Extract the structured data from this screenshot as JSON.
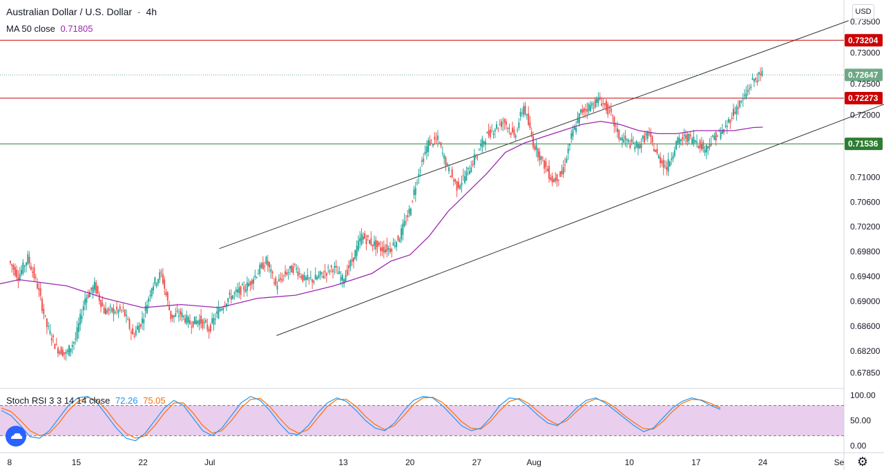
{
  "header": {
    "symbol_title": "Australian Dollar / U.S. Dollar",
    "separator": "·",
    "interval": "4h",
    "ma_label": "MA 50 close",
    "ma_value": "0.71805",
    "currency": "USD"
  },
  "indicator": {
    "label": "Stoch RSI 3 3 14 14 close",
    "k_value": "72.26",
    "d_value": "75.05"
  },
  "colors": {
    "up": "#26a69a",
    "down": "#ef5350",
    "ma": "#9c27b0",
    "red_line": "#cc0000",
    "green_line": "#2e7d32",
    "price_label": "#6fa888",
    "stoch_k": "#2196f3",
    "stoch_d": "#ff6d00",
    "stoch_band": "#e1bee7"
  },
  "chart_data": {
    "type": "candlestick",
    "price_axis": {
      "ticks": [
        "0.73500",
        "0.73000",
        "0.72500",
        "0.72000",
        "0.71000",
        "0.70600",
        "0.70200",
        "0.69800",
        "0.69400",
        "0.69000",
        "0.68600",
        "0.68200",
        "0.67850"
      ],
      "values": [
        0.735,
        0.73,
        0.725,
        0.72,
        0.71,
        0.706,
        0.702,
        0.698,
        0.694,
        0.69,
        0.686,
        0.682,
        0.6785
      ]
    },
    "horizontal_levels": [
      {
        "price": 0.73204,
        "label": "0.73204",
        "kind": "resistance-red"
      },
      {
        "price": 0.72647,
        "label": "0.72647",
        "kind": "last-price"
      },
      {
        "price": 0.72273,
        "label": "0.72273",
        "kind": "resistance-red"
      },
      {
        "price": 0.71536,
        "label": "0.71536",
        "kind": "support-green"
      }
    ],
    "time_axis": [
      {
        "label": "8",
        "day": 8
      },
      {
        "label": "15",
        "day": 15
      },
      {
        "label": "22",
        "day": 22
      },
      {
        "label": "Jul",
        "day": 29
      },
      {
        "label": "13",
        "day": 43
      },
      {
        "label": "20",
        "day": 50
      },
      {
        "label": "27",
        "day": 57
      },
      {
        "label": "Aug",
        "day": 63
      },
      {
        "label": "10",
        "day": 73
      },
      {
        "label": "17",
        "day": 80
      },
      {
        "label": "24",
        "day": 87
      },
      {
        "label": "Se",
        "day": 95
      }
    ],
    "path_points": [
      [
        8,
        0.6965
      ],
      [
        9,
        0.694
      ],
      [
        10,
        0.697
      ],
      [
        11,
        0.6925
      ],
      [
        12,
        0.686
      ],
      [
        13,
        0.6825
      ],
      [
        14,
        0.6815
      ],
      [
        15,
        0.684
      ],
      [
        16,
        0.6905
      ],
      [
        17,
        0.6925
      ],
      [
        18,
        0.6885
      ],
      [
        19,
        0.6885
      ],
      [
        20,
        0.6885
      ],
      [
        21,
        0.6845
      ],
      [
        22,
        0.687
      ],
      [
        23,
        0.6925
      ],
      [
        24,
        0.6945
      ],
      [
        25,
        0.6875
      ],
      [
        26,
        0.688
      ],
      [
        27,
        0.6865
      ],
      [
        28,
        0.687
      ],
      [
        29,
        0.6855
      ],
      [
        30,
        0.6885
      ],
      [
        31,
        0.6905
      ],
      [
        32,
        0.6915
      ],
      [
        33,
        0.6925
      ],
      [
        34,
        0.6945
      ],
      [
        35,
        0.6965
      ],
      [
        36,
        0.6925
      ],
      [
        37,
        0.6945
      ],
      [
        38,
        0.6955
      ],
      [
        39,
        0.6935
      ],
      [
        40,
        0.6935
      ],
      [
        41,
        0.6945
      ],
      [
        42,
        0.6955
      ],
      [
        43,
        0.6935
      ],
      [
        44,
        0.6965
      ],
      [
        45,
        0.7005
      ],
      [
        46,
        0.6995
      ],
      [
        47,
        0.6985
      ],
      [
        48,
        0.6985
      ],
      [
        49,
        0.7005
      ],
      [
        50,
        0.7045
      ],
      [
        51,
        0.711
      ],
      [
        52,
        0.7155
      ],
      [
        53,
        0.716
      ],
      [
        54,
        0.7115
      ],
      [
        55,
        0.7085
      ],
      [
        56,
        0.7105
      ],
      [
        57,
        0.7135
      ],
      [
        58,
        0.7165
      ],
      [
        59,
        0.718
      ],
      [
        60,
        0.719
      ],
      [
        61,
        0.7165
      ],
      [
        62,
        0.7215
      ],
      [
        63,
        0.7155
      ],
      [
        64,
        0.7125
      ],
      [
        65,
        0.7095
      ],
      [
        66,
        0.7105
      ],
      [
        67,
        0.7165
      ],
      [
        68,
        0.7205
      ],
      [
        69,
        0.7215
      ],
      [
        70,
        0.7225
      ],
      [
        71,
        0.7205
      ],
      [
        72,
        0.7165
      ],
      [
        73,
        0.7155
      ],
      [
        74,
        0.715
      ],
      [
        75,
        0.717
      ],
      [
        76,
        0.7135
      ],
      [
        77,
        0.7115
      ],
      [
        78,
        0.7155
      ],
      [
        79,
        0.7165
      ],
      [
        80,
        0.716
      ],
      [
        81,
        0.7145
      ],
      [
        82,
        0.7165
      ],
      [
        83,
        0.7175
      ],
      [
        84,
        0.7205
      ],
      [
        85,
        0.7225
      ],
      [
        86,
        0.7255
      ],
      [
        87,
        0.7265
      ]
    ],
    "ma50_points": [
      [
        0,
        0.681
      ],
      [
        6,
        0.6925
      ],
      [
        9,
        0.6935
      ],
      [
        14,
        0.6925
      ],
      [
        18,
        0.6905
      ],
      [
        22,
        0.689
      ],
      [
        26,
        0.6895
      ],
      [
        30,
        0.689
      ],
      [
        34,
        0.6905
      ],
      [
        38,
        0.691
      ],
      [
        42,
        0.6925
      ],
      [
        46,
        0.6945
      ],
      [
        48,
        0.6965
      ],
      [
        50,
        0.6975
      ],
      [
        52,
        0.7005
      ],
      [
        54,
        0.7045
      ],
      [
        56,
        0.7075
      ],
      [
        58,
        0.7105
      ],
      [
        60,
        0.714
      ],
      [
        62,
        0.7155
      ],
      [
        64,
        0.7165
      ],
      [
        66,
        0.7175
      ],
      [
        68,
        0.7185
      ],
      [
        70,
        0.719
      ],
      [
        72,
        0.7185
      ],
      [
        74,
        0.7175
      ],
      [
        76,
        0.717
      ],
      [
        78,
        0.717
      ],
      [
        80,
        0.7175
      ],
      [
        84,
        0.7175
      ],
      [
        86,
        0.718
      ],
      [
        87,
        0.71805
      ]
    ],
    "trendlines": [
      {
        "p1": [
          30,
          0.6985
        ],
        "p2": [
          96,
          0.7352
        ]
      },
      {
        "p1": [
          36,
          0.6845
        ],
        "p2": [
          101,
          0.7225
        ]
      }
    ],
    "stoch_rsi": {
      "upper_band": 80,
      "lower_band": 20,
      "ticks": [
        "100.00",
        "50.00",
        "0.00"
      ],
      "k_series": [
        70,
        60,
        40,
        18,
        15,
        30,
        55,
        80,
        95,
        98,
        85,
        60,
        35,
        15,
        10,
        25,
        50,
        75,
        90,
        80,
        55,
        30,
        20,
        35,
        60,
        85,
        98,
        90,
        70,
        45,
        25,
        22,
        40,
        65,
        85,
        95,
        88,
        70,
        50,
        35,
        30,
        45,
        70,
        90,
        98,
        95,
        80,
        60,
        40,
        30,
        35,
        55,
        80,
        95,
        92,
        78,
        60,
        45,
        40,
        55,
        75,
        90,
        95,
        85,
        70,
        55,
        40,
        28,
        35,
        55,
        75,
        88,
        95,
        90,
        80,
        72.26
      ],
      "d_series": [
        75,
        68,
        50,
        30,
        20,
        25,
        45,
        70,
        88,
        96,
        90,
        70,
        45,
        25,
        15,
        20,
        40,
        65,
        85,
        85,
        65,
        40,
        25,
        30,
        50,
        75,
        92,
        94,
        78,
        55,
        35,
        25,
        32,
        55,
        78,
        92,
        92,
        78,
        58,
        42,
        32,
        40,
        60,
        82,
        95,
        96,
        86,
        68,
        48,
        35,
        33,
        48,
        70,
        88,
        94,
        84,
        68,
        52,
        42,
        50,
        68,
        85,
        93,
        88,
        76,
        60,
        46,
        34,
        33,
        48,
        68,
        84,
        92,
        91,
        84,
        75.05
      ]
    }
  }
}
